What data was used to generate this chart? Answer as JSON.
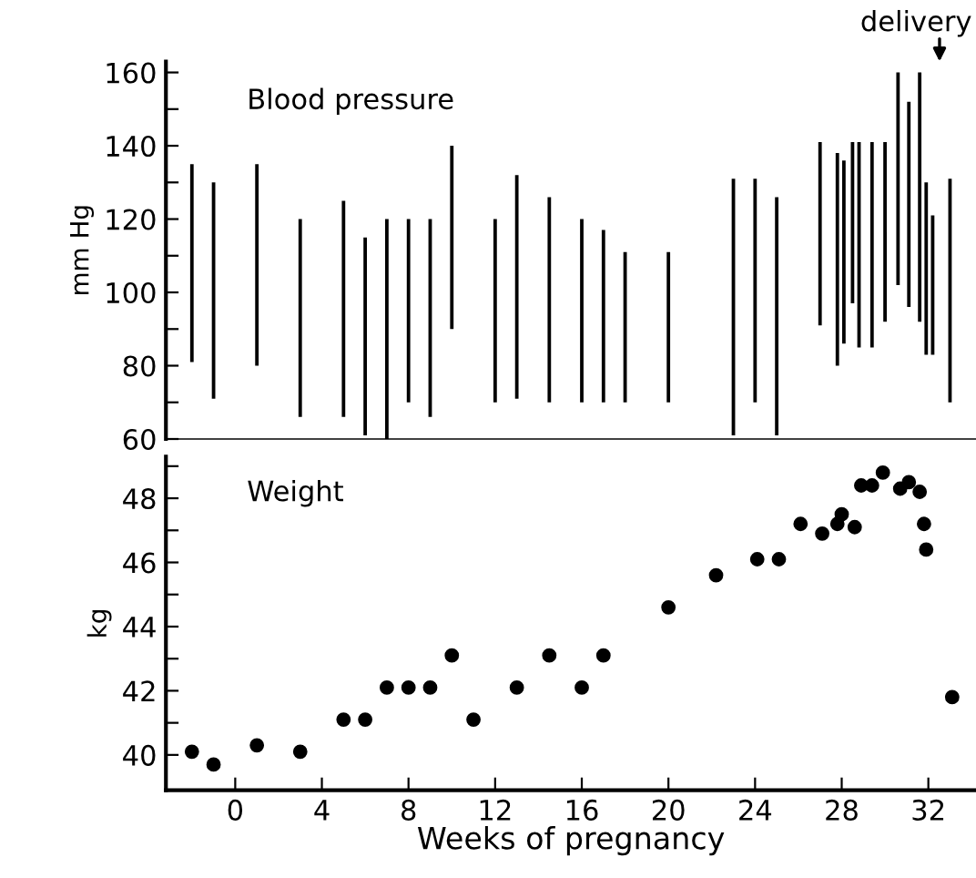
{
  "chart_data": [
    {
      "type": "bar",
      "title": "Blood pressure",
      "ylabel": "mm Hg",
      "tick_labels": "y",
      "grid": false,
      "legend": false,
      "x": [
        -2,
        -1,
        1,
        3,
        5,
        6,
        7,
        8,
        9,
        10,
        12,
        13,
        14.5,
        16,
        17,
        18,
        20,
        23,
        24,
        25,
        27,
        27.8,
        28.1,
        28.5,
        28.8,
        29.4,
        30,
        30.6,
        31.1,
        31.6,
        31.9,
        32.2,
        33
      ],
      "base": [
        81,
        71,
        80,
        66,
        66,
        61,
        60,
        70,
        66,
        90,
        70,
        71,
        70,
        70,
        70,
        70,
        70,
        61,
        70,
        61,
        91,
        80,
        86,
        97,
        85,
        85,
        92,
        102,
        96,
        92,
        83,
        83,
        70
      ],
      "values": [
        54,
        59,
        55,
        54,
        59,
        54,
        60,
        50,
        54,
        50,
        50,
        61,
        56,
        50,
        47,
        41,
        41,
        70,
        61,
        65,
        50,
        58,
        50,
        44,
        56,
        56,
        49,
        58,
        56,
        68,
        47,
        38,
        61
      ],
      "color": "#000000",
      "xlim": [
        -3.2,
        34.2
      ],
      "ylim": [
        60,
        163
      ],
      "yticks": [
        60,
        {
          "value": 70,
          "label": null
        },
        80,
        {
          "value": 90,
          "label": null
        },
        100,
        {
          "value": 110,
          "label": null
        },
        120,
        {
          "value": 130,
          "label": null
        },
        140,
        {
          "value": 150,
          "label": null
        },
        160
      ],
      "annotations": [
        "delivery"
      ]
    },
    {
      "type": "scatter",
      "title": "Weight",
      "ylabel": "kg",
      "xlabel": "Weeks of pregnancy",
      "grid": false,
      "legend": false,
      "marker": "circle",
      "color": "#000000",
      "x": [
        -2,
        -1,
        1,
        3,
        5,
        6,
        7,
        8,
        9,
        10,
        11,
        13,
        14.5,
        16,
        17,
        20,
        22.2,
        24.1,
        25.1,
        26.1,
        27.1,
        27.8,
        28,
        28.6,
        28.9,
        29.4,
        29.9,
        30.7,
        31.1,
        31.6,
        31.8,
        31.9,
        33.1
      ],
      "values": [
        40.1,
        39.7,
        40.3,
        40.1,
        41.1,
        41.1,
        42.1,
        42.1,
        42.1,
        43.1,
        41.1,
        42.1,
        43.1,
        42.1,
        43.1,
        44.6,
        45.6,
        46.1,
        46.1,
        47.2,
        46.9,
        47.2,
        47.5,
        47.1,
        48.4,
        48.4,
        48.8,
        48.3,
        48.5,
        48.2,
        47.2,
        46.4,
        41.8
      ],
      "xlim": [
        -3.2,
        34.2
      ],
      "ylim": [
        38.9,
        49.3
      ],
      "xticks": [
        0,
        4,
        8,
        12,
        16,
        20,
        24,
        28,
        32
      ],
      "yticks": [
        40,
        {
          "value": 41,
          "label": null
        },
        42,
        {
          "value": 43,
          "label": null
        },
        44,
        {
          "value": 45,
          "label": null
        },
        46,
        {
          "value": 47,
          "label": null
        },
        48,
        {
          "value": 49,
          "label": null
        }
      ]
    }
  ]
}
